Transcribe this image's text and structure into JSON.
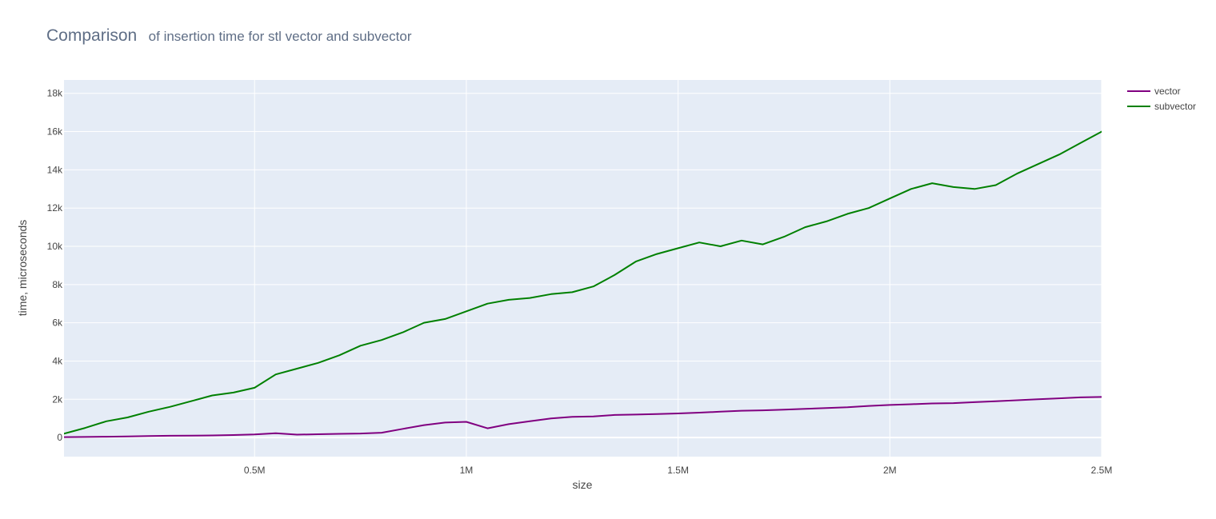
{
  "colors": {
    "background": "#ffffff",
    "plot_background": "#e5ecf6",
    "grid": "#ffffff",
    "title": "#5f6e86",
    "text": "#444444",
    "vector": "#800080",
    "subvector": "#008000"
  },
  "chart_data": {
    "type": "line",
    "title": "Comparison",
    "subtitle": "of insertion time for stl vector and subvector",
    "xlabel": "size",
    "ylabel": "time, microseconds",
    "xlim": [
      50000,
      2500000
    ],
    "ylim": [
      -1000,
      18700
    ],
    "x_ticks": [
      {
        "value": 500000,
        "label": "0.5M"
      },
      {
        "value": 1000000,
        "label": "1M"
      },
      {
        "value": 1500000,
        "label": "1.5M"
      },
      {
        "value": 2000000,
        "label": "2M"
      },
      {
        "value": 2500000,
        "label": "2.5M"
      }
    ],
    "y_ticks": [
      {
        "value": 0,
        "label": "0"
      },
      {
        "value": 2000,
        "label": "2k"
      },
      {
        "value": 4000,
        "label": "4k"
      },
      {
        "value": 6000,
        "label": "6k"
      },
      {
        "value": 8000,
        "label": "8k"
      },
      {
        "value": 10000,
        "label": "10k"
      },
      {
        "value": 12000,
        "label": "12k"
      },
      {
        "value": 14000,
        "label": "14k"
      },
      {
        "value": 16000,
        "label": "16k"
      },
      {
        "value": 18000,
        "label": "18k"
      }
    ],
    "grid": true,
    "legend": "top-right",
    "x": [
      50000,
      100000,
      150000,
      200000,
      250000,
      300000,
      350000,
      400000,
      450000,
      500000,
      550000,
      600000,
      650000,
      700000,
      750000,
      800000,
      850000,
      900000,
      950000,
      1000000,
      1050000,
      1100000,
      1150000,
      1200000,
      1250000,
      1300000,
      1350000,
      1400000,
      1450000,
      1500000,
      1550000,
      1600000,
      1650000,
      1700000,
      1750000,
      1800000,
      1850000,
      1900000,
      1950000,
      2000000,
      2050000,
      2100000,
      2150000,
      2200000,
      2250000,
      2300000,
      2350000,
      2400000,
      2450000,
      2500000
    ],
    "series": [
      {
        "name": "vector",
        "color": "#800080",
        "values": [
          20,
          30,
          40,
          60,
          80,
          90,
          100,
          110,
          130,
          160,
          220,
          150,
          170,
          190,
          210,
          250,
          450,
          650,
          780,
          820,
          480,
          700,
          850,
          1000,
          1080,
          1100,
          1180,
          1200,
          1230,
          1260,
          1300,
          1350,
          1400,
          1420,
          1460,
          1500,
          1540,
          1580,
          1650,
          1700,
          1740,
          1780,
          1800,
          1850,
          1900,
          1950,
          2000,
          2050,
          2100,
          2120
        ]
      },
      {
        "name": "subvector",
        "color": "#008000",
        "values": [
          200,
          500,
          850,
          1050,
          1350,
          1600,
          1900,
          2200,
          2350,
          2600,
          3300,
          3600,
          3900,
          4300,
          4800,
          5100,
          5500,
          6000,
          6200,
          6600,
          7000,
          7200,
          7300,
          7500,
          7600,
          7900,
          8500,
          9200,
          9600,
          9900,
          10200,
          10000,
          10300,
          10100,
          10500,
          11000,
          11300,
          11700,
          12000,
          12500,
          13000,
          13300,
          13100,
          13000,
          13200,
          13800,
          14300,
          14800,
          15400,
          16000
        ]
      }
    ]
  }
}
